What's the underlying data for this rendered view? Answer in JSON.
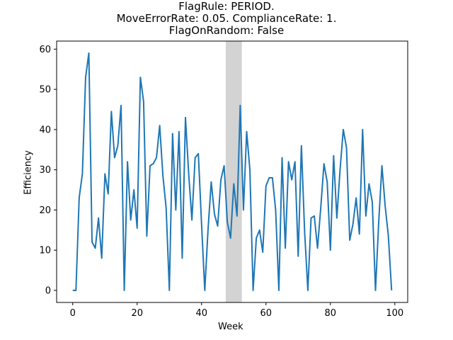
{
  "chart_data": {
    "type": "line",
    "title_lines": [
      "FlagRule: PERIOD.",
      "MoveErrorRate: 0.05. ComplianceRate: 1.",
      "FlagOnRandom: False"
    ],
    "xlabel": "Week",
    "ylabel": "Efficiency",
    "xlim": [
      -5,
      104
    ],
    "ylim": [
      -3,
      62
    ],
    "xticks": [
      0,
      20,
      40,
      60,
      80,
      100
    ],
    "yticks": [
      0,
      10,
      20,
      30,
      40,
      50,
      60
    ],
    "grid": false,
    "shaded_region": {
      "x_start": 47.5,
      "x_end": 52.5,
      "color": "#d3d3d3"
    },
    "series": [
      {
        "color": "#1f77b4",
        "x": [
          0,
          1,
          2,
          3,
          4,
          5,
          6,
          7,
          8,
          9,
          10,
          11,
          12,
          13,
          14,
          15,
          16,
          17,
          18,
          19,
          20,
          21,
          22,
          23,
          24,
          25,
          26,
          27,
          28,
          29,
          30,
          31,
          32,
          33,
          34,
          35,
          36,
          37,
          38,
          39,
          40,
          41,
          42,
          43,
          44,
          45,
          46,
          47,
          48,
          49,
          50,
          51,
          52,
          53,
          54,
          55,
          56,
          57,
          58,
          59,
          60,
          61,
          62,
          63,
          64,
          65,
          66,
          67,
          68,
          69,
          70,
          71,
          72,
          73,
          74,
          75,
          76,
          77,
          78,
          79,
          80,
          81,
          82,
          83,
          84,
          85,
          86,
          87,
          88,
          89,
          90,
          91,
          92,
          93,
          94,
          95,
          96,
          97,
          98,
          99
        ],
        "values": [
          0,
          0,
          23,
          29,
          53,
          59,
          12,
          10.5,
          18,
          8,
          29,
          24,
          44.5,
          33,
          36,
          46,
          0,
          32,
          17.5,
          25,
          15.5,
          53,
          47,
          13.5,
          31,
          31.5,
          33,
          41,
          28.5,
          20.5,
          0,
          39,
          20,
          39.5,
          8,
          43,
          29,
          17.5,
          33,
          34,
          16.5,
          0,
          15,
          27,
          19,
          16,
          27.5,
          31,
          17,
          13,
          26.5,
          18.5,
          46,
          20,
          39.5,
          30,
          0,
          13,
          15,
          9.5,
          26,
          28,
          28,
          20,
          0,
          33,
          10.5,
          32,
          27.5,
          32,
          8.5,
          36,
          14.5,
          0,
          18,
          18.5,
          10.5,
          20.5,
          31.5,
          27,
          10,
          33.5,
          18,
          30,
          40,
          35.5,
          12.5,
          16.5,
          23,
          14,
          40,
          18.5,
          26.5,
          22,
          0,
          17,
          31,
          21,
          13.5,
          0
        ]
      }
    ]
  }
}
